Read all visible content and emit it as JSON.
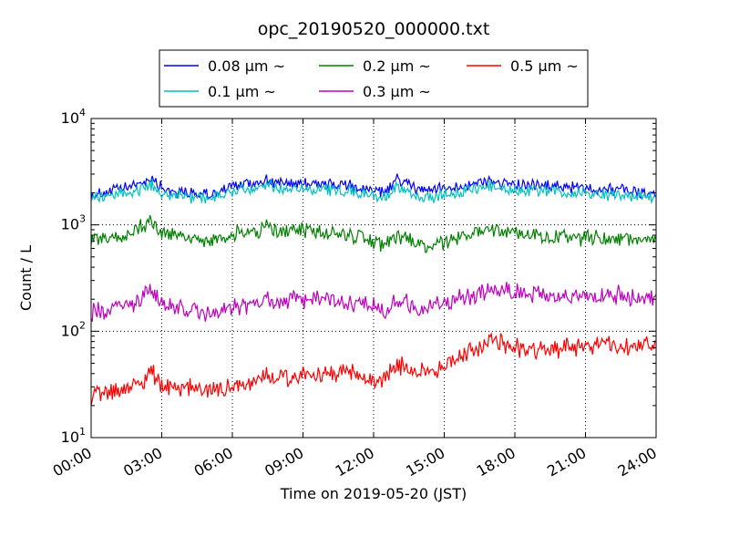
{
  "chart_data": {
    "type": "line",
    "title": "opc_20190520_000000.txt",
    "xlabel": "Time on 2019-05-20 (JST)",
    "ylabel": "Count / L",
    "x_ticks": [
      "00:00",
      "03:00",
      "06:00",
      "09:00",
      "12:00",
      "15:00",
      "18:00",
      "21:00",
      "24:00"
    ],
    "xlim": [
      "00:00",
      "24:00"
    ],
    "y_scale": "log",
    "ylim": [
      10,
      10000
    ],
    "y_ticks": [
      {
        "base": "10",
        "exp": "1"
      },
      {
        "base": "10",
        "exp": "2"
      },
      {
        "base": "10",
        "exp": "3"
      },
      {
        "base": "10",
        "exp": "4"
      }
    ],
    "grid": true,
    "legend_position": "top",
    "series": [
      {
        "name": "0.08 μm ~",
        "color": "#0000ff",
        "hours": [
          0,
          1,
          2,
          2.6,
          3,
          4,
          5,
          6,
          7,
          7.5,
          8,
          9,
          10,
          11,
          12,
          12.5,
          13,
          13.8,
          14,
          15,
          16,
          17,
          18,
          19,
          20,
          21,
          22,
          23,
          24
        ],
        "values": [
          1900,
          2100,
          2400,
          2800,
          2200,
          2000,
          1900,
          2300,
          2500,
          2700,
          2400,
          2500,
          2400,
          2300,
          2100,
          2000,
          2700,
          2200,
          2100,
          2200,
          2400,
          2600,
          2400,
          2300,
          2300,
          2200,
          2200,
          2100,
          1900
        ]
      },
      {
        "name": "0.1 μm ~",
        "color": "#00bfbf",
        "hours": [
          0,
          1,
          2,
          2.6,
          3,
          4,
          5,
          6,
          7,
          7.5,
          8,
          9,
          10,
          11,
          12,
          12.5,
          13,
          13.8,
          14,
          15,
          16,
          17,
          18,
          19,
          20,
          21,
          22,
          23,
          24
        ],
        "values": [
          1800,
          1900,
          2100,
          2400,
          2000,
          1800,
          1800,
          2100,
          2200,
          2400,
          2200,
          2200,
          2100,
          2100,
          1900,
          1800,
          2300,
          1800,
          1800,
          1900,
          2100,
          2300,
          2100,
          2100,
          2000,
          2000,
          1900,
          1900,
          1800
        ]
      },
      {
        "name": "0.2 μm ~",
        "color": "#008000",
        "hours": [
          0,
          1,
          2,
          2.6,
          3,
          4,
          5,
          6,
          7,
          7.5,
          8,
          9,
          10,
          11,
          12,
          12.5,
          13,
          13.8,
          14,
          15,
          16,
          17,
          18,
          19,
          20,
          21,
          22,
          23,
          24
        ],
        "values": [
          750,
          750,
          900,
          1100,
          850,
          750,
          700,
          800,
          850,
          1000,
          850,
          900,
          850,
          800,
          700,
          650,
          800,
          650,
          600,
          700,
          800,
          950,
          850,
          800,
          750,
          750,
          750,
          750,
          700
        ]
      },
      {
        "name": "0.3 μm ~",
        "color": "#bf00bf",
        "hours": [
          0,
          1,
          2,
          2.6,
          3,
          4,
          5,
          6,
          7,
          7.5,
          8,
          9,
          10,
          11,
          12,
          12.5,
          13,
          13.8,
          14,
          15,
          16,
          17,
          18,
          19,
          20,
          21,
          22,
          23,
          24
        ],
        "values": [
          145,
          160,
          195,
          240,
          175,
          155,
          145,
          165,
          180,
          195,
          185,
          200,
          200,
          190,
          165,
          155,
          200,
          170,
          165,
          180,
          210,
          250,
          240,
          220,
          215,
          215,
          215,
          215,
          205
        ]
      },
      {
        "name": "0.5 μm ~",
        "color": "#ff0000",
        "hours": [
          0,
          1,
          2,
          2.6,
          3,
          4,
          5,
          6,
          7,
          7.5,
          8,
          9,
          10,
          11,
          12,
          12.5,
          13,
          13.8,
          14,
          15,
          16,
          17,
          18,
          19,
          20,
          21,
          22,
          23,
          24
        ],
        "values": [
          24,
          27,
          32,
          40,
          29,
          30,
          27,
          30,
          35,
          40,
          35,
          38,
          38,
          40,
          32,
          35,
          48,
          42,
          40,
          47,
          62,
          80,
          70,
          65,
          70,
          72,
          75,
          75,
          72
        ]
      }
    ]
  }
}
